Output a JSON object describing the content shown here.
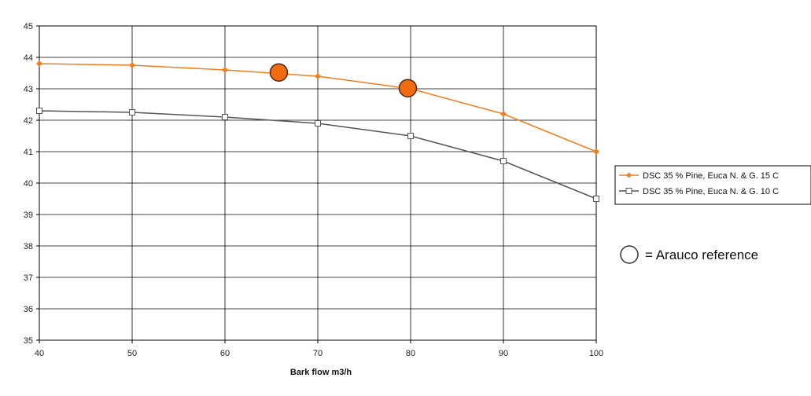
{
  "chart_data": {
    "type": "line",
    "title": "",
    "xlabel": "Bark flow m3/h",
    "ylabel": "",
    "xlim": [
      40,
      100
    ],
    "ylim": [
      35,
      45
    ],
    "x_ticks": [
      40,
      50,
      60,
      70,
      80,
      90,
      100
    ],
    "y_ticks": [
      35,
      36,
      37,
      38,
      39,
      40,
      41,
      42,
      43,
      44,
      45
    ],
    "grid": true,
    "legend_position": "right",
    "series": [
      {
        "name": "DSC 35 % Pine, Euca N. & G. 15 C",
        "color": "#f27d20",
        "marker": "diamond-filled",
        "x": [
          40,
          50,
          60,
          70,
          80,
          90,
          100
        ],
        "y": [
          43.8,
          43.75,
          43.6,
          43.4,
          43.0,
          42.2,
          41.0
        ]
      },
      {
        "name": "DSC 35 % Pine, Euca N. & G. 10 C",
        "color": "#555555",
        "marker": "square-open",
        "x": [
          40,
          50,
          60,
          70,
          80,
          90,
          100
        ],
        "y": [
          42.3,
          42.25,
          42.1,
          41.9,
          41.5,
          40.7,
          39.5
        ]
      }
    ],
    "reference_points": {
      "color": "#f26b0f",
      "points": [
        {
          "x": 65.8,
          "y": 43.52
        },
        {
          "x": 79.7,
          "y": 43.02
        }
      ]
    },
    "annotation": "= Arauco reference"
  }
}
